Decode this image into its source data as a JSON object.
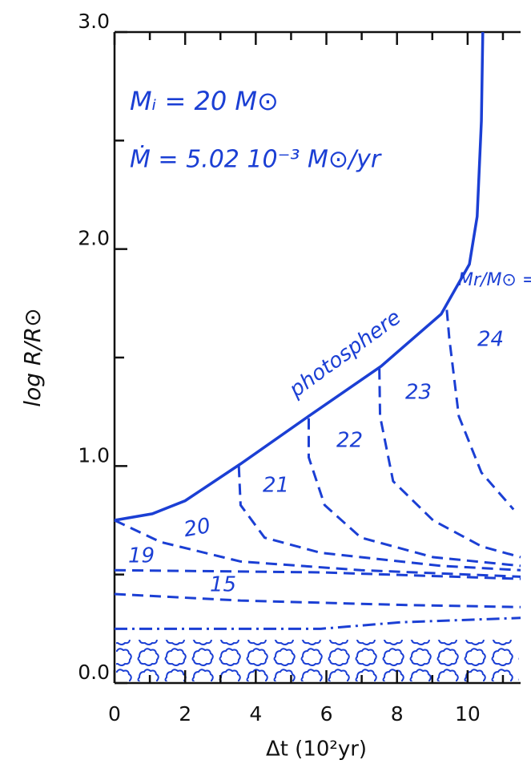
{
  "chart_data": {
    "type": "line",
    "annotations": [
      "Mᵢ = 20 M⊙",
      "Ṁ = 5.02 10⁻³ M⊙/yr",
      "Mr/M⊙ ="
    ],
    "xlabel": "Δt (10²yr)",
    "ylabel": "log R/R⊙",
    "xlim": [
      0,
      11.5
    ],
    "ylim": [
      0,
      3
    ],
    "xticks": [
      0,
      2,
      4,
      6,
      8,
      10
    ],
    "xminor": [
      1,
      3,
      5,
      7,
      9,
      11
    ],
    "yticks": [
      {
        "value": 0,
        "label": "0.0"
      },
      {
        "value": 1,
        "label": "1.0"
      },
      {
        "value": 2,
        "label": "2.0"
      },
      {
        "value": 3,
        "label": "3.0"
      }
    ],
    "yminor": [
      0.5,
      1.5,
      2.5
    ],
    "color": "#1b3fd4",
    "series": [
      {
        "name": "photosphere",
        "style": "solid",
        "x": [
          0,
          1.07,
          2,
          3.57,
          5.5,
          7.55,
          9.25,
          10.05,
          10.27,
          10.39,
          10.43
        ],
        "values": [
          0.75,
          0.78,
          0.84,
          1.01,
          1.23,
          1.46,
          1.7,
          1.93,
          2.15,
          2.59,
          3.0
        ]
      },
      {
        "name": "24",
        "style": "dashed",
        "x": [
          9.41,
          9.48,
          9.75,
          10.39,
          11.3
        ],
        "values": [
          1.72,
          1.59,
          1.23,
          0.97,
          0.8
        ]
      },
      {
        "name": "23",
        "style": "dashed",
        "x": [
          7.5,
          7.52,
          7.89,
          9.02,
          10.39,
          11.5
        ],
        "values": [
          1.45,
          1.23,
          0.93,
          0.75,
          0.63,
          0.58
        ]
      },
      {
        "name": "22",
        "style": "dashed",
        "x": [
          5.5,
          5.5,
          5.95,
          6.98,
          9.02,
          11.5
        ],
        "values": [
          1.22,
          1.04,
          0.82,
          0.67,
          0.58,
          0.54
        ]
      },
      {
        "name": "21",
        "style": "dashed",
        "x": [
          3.52,
          3.57,
          4.25,
          5.84,
          9.25,
          11.5
        ],
        "values": [
          1.0,
          0.82,
          0.67,
          0.6,
          0.54,
          0.52
        ]
      },
      {
        "name": "20",
        "style": "dashed",
        "x": [
          0,
          1.3,
          3.57,
          6.98,
          11.5
        ],
        "values": [
          0.75,
          0.65,
          0.56,
          0.52,
          0.49
        ]
      },
      {
        "name": "19",
        "style": "dashed",
        "x": [
          0,
          5.84,
          11.5
        ],
        "values": [
          0.52,
          0.51,
          0.48
        ]
      },
      {
        "name": "15",
        "style": "dashed",
        "x": [
          0,
          3.57,
          8.11,
          11.5
        ],
        "values": [
          0.41,
          0.38,
          0.36,
          0.35
        ]
      },
      {
        "style": "dashdot",
        "x": [
          0,
          5.84,
          8.11,
          11.5
        ],
        "values": [
          0.25,
          0.25,
          0.28,
          0.3
        ]
      }
    ]
  }
}
